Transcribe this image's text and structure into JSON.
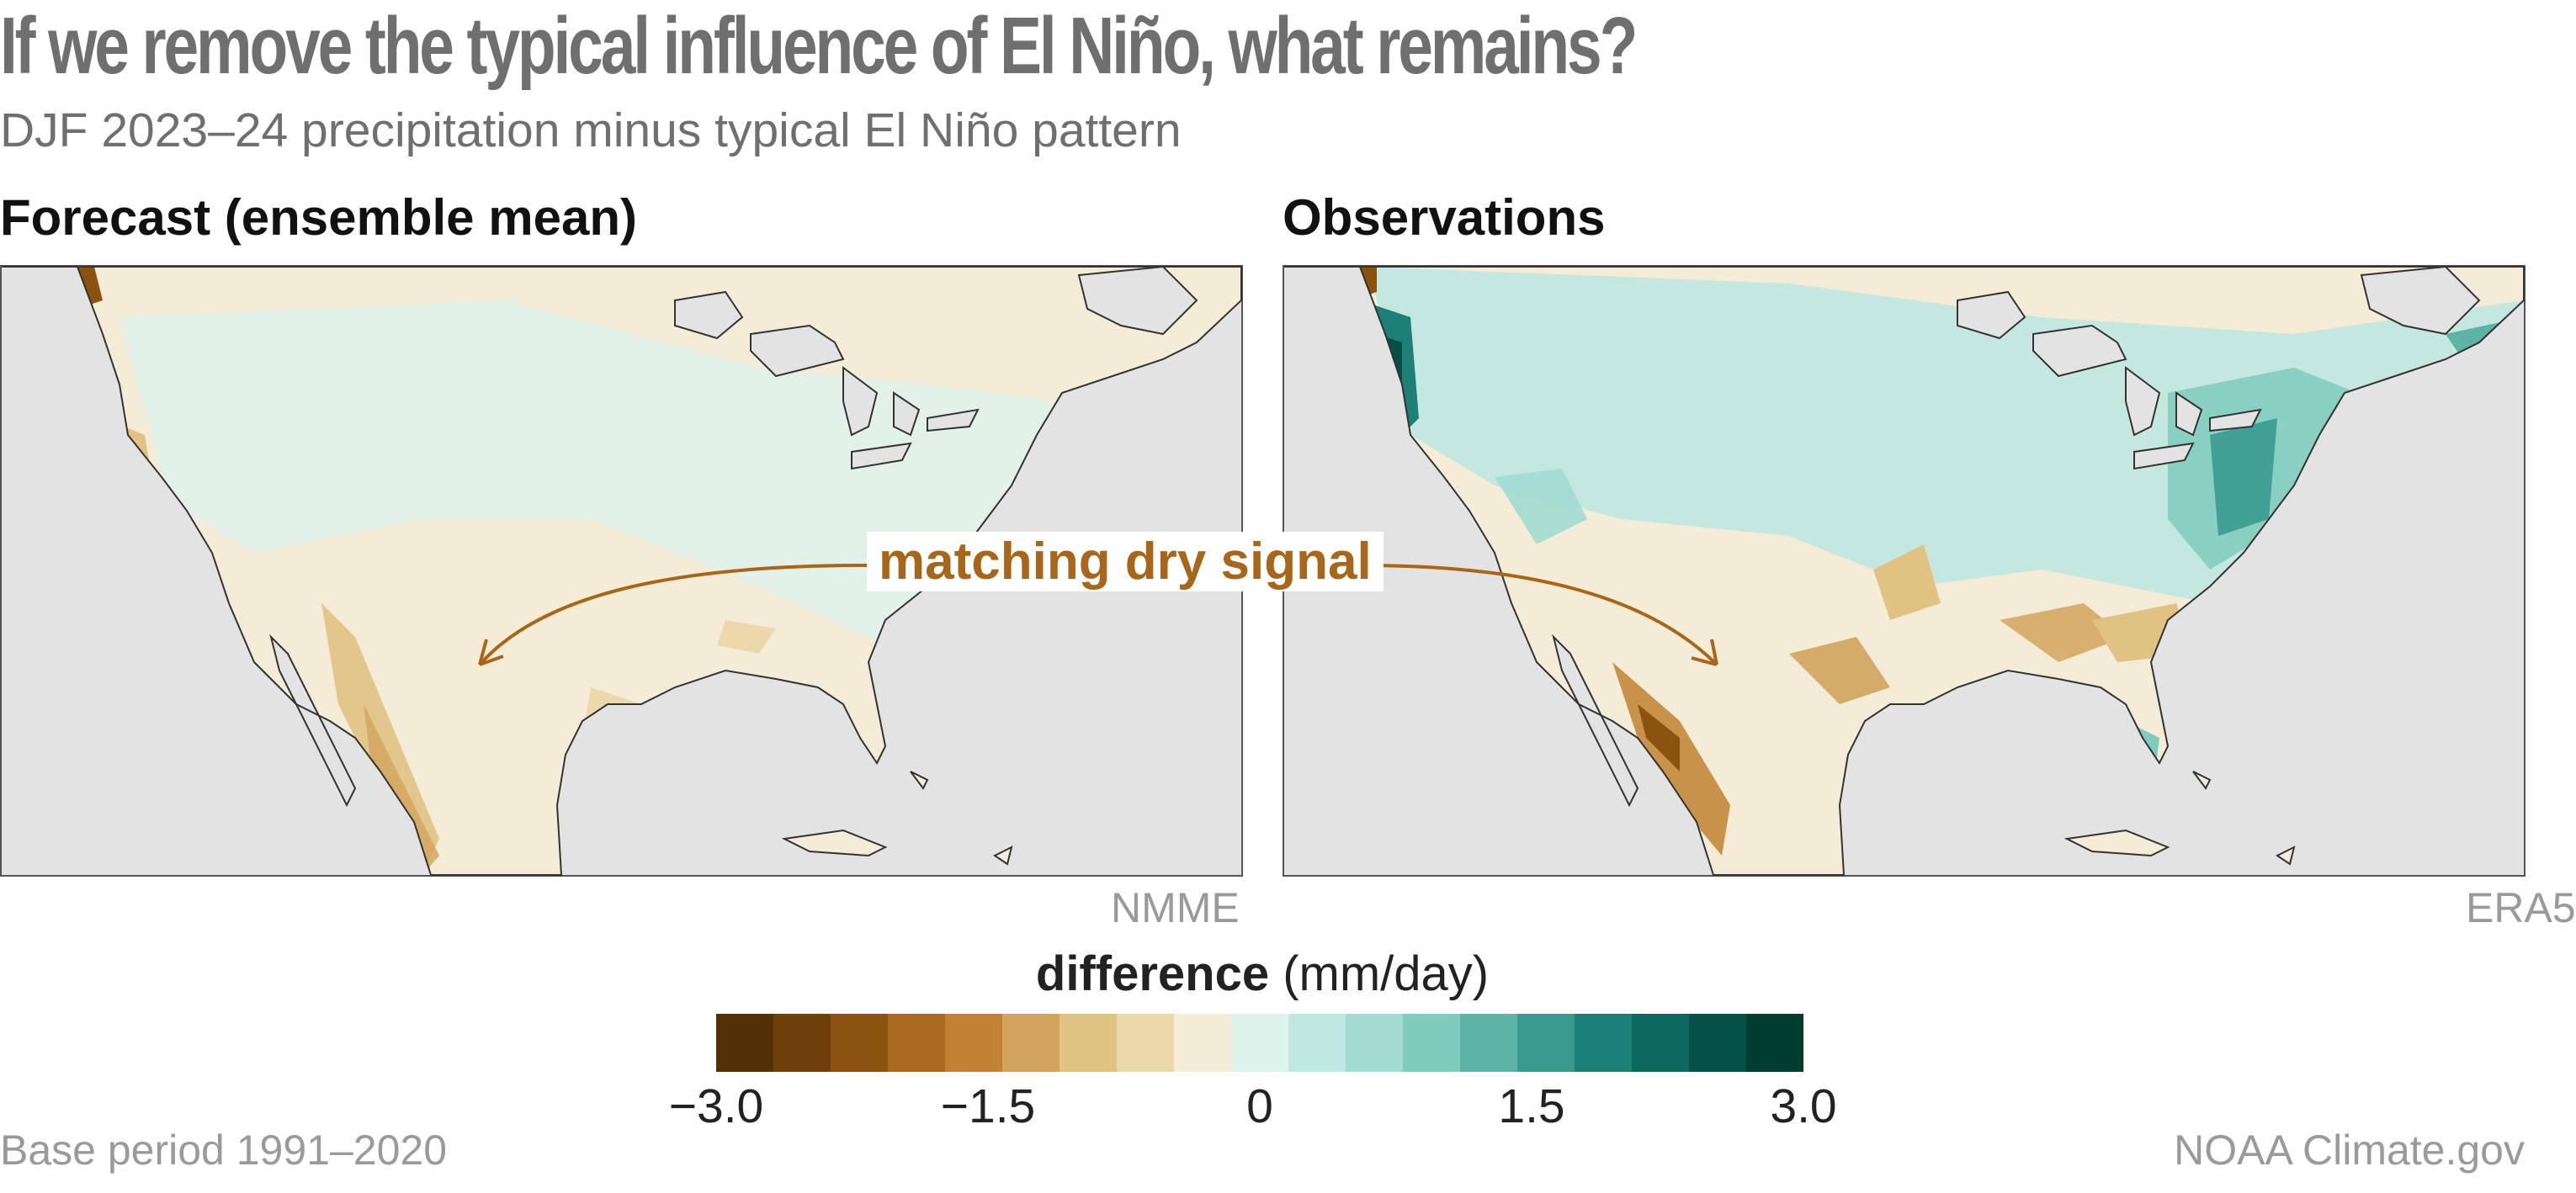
{
  "header": {
    "title": "If we remove the typical influence of El Niño, what remains?",
    "subtitle": "DJF 2023–24 precipitation minus typical El Niño pattern"
  },
  "panels": [
    {
      "title": "Forecast (ensemble mean)",
      "source": "NMME"
    },
    {
      "title": "Observations",
      "source": "ERA5"
    }
  ],
  "annotation": {
    "label": "matching dry signal",
    "color": "#a8661a"
  },
  "legend": {
    "title_bold": "difference",
    "title_unit": "(mm/day)",
    "range": [
      -3.0,
      3.0
    ],
    "ticks": [
      "−3.0",
      "−1.5",
      "0",
      "1.5",
      "3.0"
    ],
    "colors": [
      "#543005",
      "#6e3f0a",
      "#8c5210",
      "#a9691e",
      "#c08233",
      "#d2a45d",
      "#e0c283",
      "#ecd9ab",
      "#f4ecd6",
      "#def3ec",
      "#bfe8e0",
      "#a1dbd2",
      "#7fcbbe",
      "#5cb3a6",
      "#389a8f",
      "#1c8076",
      "#0b6960",
      "#055148",
      "#003c30"
    ]
  },
  "footer": {
    "left": "Base period 1991–2020",
    "right": "NOAA Climate.gov"
  },
  "map_colors": {
    "ocean": "#e3e3e3",
    "neutral_dry": "#f4ecd6",
    "neutral_wet": "#def3ec",
    "coastline": "#333333"
  }
}
